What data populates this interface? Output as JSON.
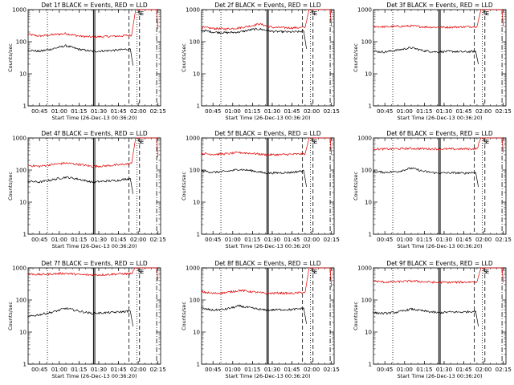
{
  "chart_data": {
    "type": "line",
    "grid": false,
    "xlabel": "Start Time (26-Dec-13 00:36:20)",
    "ylabel": "Counts/sec",
    "y_scale": "log",
    "ylim": [
      1,
      1000
    ],
    "yticks": [
      "1",
      "10",
      "100",
      "1000"
    ],
    "xlim": [
      "00:36:20",
      "02:17:00"
    ],
    "xticks": [
      {
        "time": "00:45",
        "label": "00:45"
      },
      {
        "time": "01:00",
        "label": "01:00"
      },
      {
        "time": "01:15",
        "label": "01:15"
      },
      {
        "time": "01:30",
        "label": "01:30"
      },
      {
        "time": "01:45",
        "label": "01:45"
      },
      {
        "time": "02:00",
        "label": "02:00"
      },
      {
        "time": "02:15",
        "label": "02:15"
      }
    ],
    "markers": [
      {
        "time": "00:51",
        "style": "dotted"
      },
      {
        "time": "01:26",
        "style": "solid"
      },
      {
        "time": "01:27",
        "style": "solid"
      },
      {
        "time": "01:53",
        "style": "dashed"
      },
      {
        "time": "01:59",
        "style": "dotted",
        "label": "S"
      },
      {
        "time": "02:01",
        "style": "dashed",
        "label": "E"
      },
      {
        "time": "02:14",
        "style": "dashdot"
      }
    ],
    "panels": [
      {
        "title": "Det 1f BLACK = Events, RED = LLD",
        "series": [
          {
            "color": "red",
            "points": [
              [
                "00:36",
                170
              ],
              [
                "00:45",
                150
              ],
              [
                "00:55",
                165
              ],
              [
                "01:05",
                180
              ],
              [
                "01:15",
                150
              ],
              [
                "01:25",
                140
              ],
              [
                "01:35",
                145
              ],
              [
                "01:45",
                150
              ],
              [
                "01:55",
                160
              ],
              [
                "01:58",
                1000
              ],
              [
                "02:14",
                1000
              ],
              [
                "02:15",
                250
              ]
            ]
          },
          {
            "color": "black",
            "points": [
              [
                "00:36",
                55
              ],
              [
                "00:45",
                50
              ],
              [
                "00:55",
                60
              ],
              [
                "01:05",
                75
              ],
              [
                "01:15",
                58
              ],
              [
                "01:25",
                50
              ],
              [
                "01:35",
                52
              ],
              [
                "01:45",
                55
              ],
              [
                "01:54",
                60
              ],
              [
                "01:56",
                18
              ]
            ]
          }
        ]
      },
      {
        "title": "Det 2f BLACK = Events, RED = LLD",
        "series": [
          {
            "color": "red",
            "points": [
              [
                "00:36",
                280
              ],
              [
                "00:45",
                260
              ],
              [
                "00:55",
                250
              ],
              [
                "01:05",
                270
              ],
              [
                "01:15",
                320
              ],
              [
                "01:20",
                360
              ],
              [
                "01:30",
                280
              ],
              [
                "01:45",
                270
              ],
              [
                "01:55",
                280
              ],
              [
                "01:58",
                1000
              ],
              [
                "02:14",
                1000
              ],
              [
                "02:15",
                300
              ]
            ]
          },
          {
            "color": "black",
            "points": [
              [
                "00:36",
                230
              ],
              [
                "00:45",
                200
              ],
              [
                "00:55",
                190
              ],
              [
                "01:05",
                200
              ],
              [
                "01:15",
                240
              ],
              [
                "01:20",
                250
              ],
              [
                "01:30",
                210
              ],
              [
                "01:45",
                200
              ],
              [
                "01:54",
                210
              ],
              [
                "01:56",
                60
              ]
            ]
          }
        ]
      },
      {
        "title": "Det 3f BLACK = Events, RED = LLD",
        "series": [
          {
            "color": "red",
            "points": [
              [
                "00:36",
                300
              ],
              [
                "00:45",
                290
              ],
              [
                "00:55",
                300
              ],
              [
                "01:05",
                310
              ],
              [
                "01:15",
                290
              ],
              [
                "01:25",
                280
              ],
              [
                "01:35",
                285
              ],
              [
                "01:45",
                290
              ],
              [
                "01:55",
                300
              ],
              [
                "01:58",
                1000
              ],
              [
                "02:14",
                1000
              ],
              [
                "02:15",
                300
              ]
            ]
          },
          {
            "color": "black",
            "points": [
              [
                "00:36",
                50
              ],
              [
                "00:45",
                48
              ],
              [
                "00:55",
                55
              ],
              [
                "01:05",
                65
              ],
              [
                "01:15",
                52
              ],
              [
                "01:25",
                48
              ],
              [
                "01:35",
                50
              ],
              [
                "01:45",
                48
              ],
              [
                "01:54",
                50
              ],
              [
                "01:56",
                20
              ]
            ]
          }
        ]
      },
      {
        "title": "Det 4f BLACK = Events, RED = LLD",
        "series": [
          {
            "color": "red",
            "points": [
              [
                "00:36",
                140
              ],
              [
                "00:45",
                130
              ],
              [
                "00:55",
                150
              ],
              [
                "01:05",
                165
              ],
              [
                "01:15",
                150
              ],
              [
                "01:25",
                130
              ],
              [
                "01:35",
                135
              ],
              [
                "01:45",
                145
              ],
              [
                "01:55",
                160
              ],
              [
                "01:58",
                1000
              ],
              [
                "02:14",
                1000
              ],
              [
                "02:15",
                250
              ]
            ]
          },
          {
            "color": "black",
            "points": [
              [
                "00:36",
                45
              ],
              [
                "00:45",
                42
              ],
              [
                "00:55",
                50
              ],
              [
                "01:05",
                60
              ],
              [
                "01:15",
                52
              ],
              [
                "01:25",
                42
              ],
              [
                "01:35",
                45
              ],
              [
                "01:45",
                48
              ],
              [
                "01:54",
                55
              ],
              [
                "01:56",
                18
              ]
            ]
          }
        ]
      },
      {
        "title": "Det 5f BLACK = Events, RED = LLD",
        "series": [
          {
            "color": "red",
            "points": [
              [
                "00:36",
                330
              ],
              [
                "00:45",
                310
              ],
              [
                "00:55",
                320
              ],
              [
                "01:05",
                350
              ],
              [
                "01:15",
                330
              ],
              [
                "01:25",
                300
              ],
              [
                "01:35",
                300
              ],
              [
                "01:45",
                310
              ],
              [
                "01:55",
                320
              ],
              [
                "01:58",
                1000
              ],
              [
                "02:14",
                1000
              ],
              [
                "02:15",
                300
              ]
            ]
          },
          {
            "color": "black",
            "points": [
              [
                "00:36",
                95
              ],
              [
                "00:45",
                85
              ],
              [
                "00:55",
                90
              ],
              [
                "01:05",
                105
              ],
              [
                "01:15",
                95
              ],
              [
                "01:25",
                80
              ],
              [
                "01:35",
                82
              ],
              [
                "01:45",
                85
              ],
              [
                "01:54",
                95
              ],
              [
                "01:56",
                30
              ]
            ]
          }
        ]
      },
      {
        "title": "Det 6f BLACK = Events, RED = LLD",
        "series": [
          {
            "color": "red",
            "points": [
              [
                "00:36",
                460
              ],
              [
                "00:45",
                450
              ],
              [
                "00:55",
                460
              ],
              [
                "01:05",
                470
              ],
              [
                "01:15",
                460
              ],
              [
                "01:25",
                455
              ],
              [
                "01:35",
                450
              ],
              [
                "01:45",
                455
              ],
              [
                "01:55",
                460
              ],
              [
                "01:58",
                1000
              ],
              [
                "02:14",
                1000
              ],
              [
                "02:15",
                350
              ]
            ]
          },
          {
            "color": "black",
            "points": [
              [
                "00:36",
                90
              ],
              [
                "00:45",
                85
              ],
              [
                "00:55",
                90
              ],
              [
                "01:05",
                115
              ],
              [
                "01:15",
                90
              ],
              [
                "01:25",
                80
              ],
              [
                "01:35",
                82
              ],
              [
                "01:45",
                80
              ],
              [
                "01:54",
                85
              ],
              [
                "01:56",
                30
              ]
            ]
          }
        ]
      },
      {
        "title": "Det 7f BLACK = Events, RED = LLD",
        "series": [
          {
            "color": "red",
            "points": [
              [
                "00:36",
                650
              ],
              [
                "00:45",
                620
              ],
              [
                "00:55",
                650
              ],
              [
                "01:05",
                680
              ],
              [
                "01:15",
                620
              ],
              [
                "01:25",
                600
              ],
              [
                "01:35",
                620
              ],
              [
                "01:45",
                650
              ],
              [
                "01:55",
                660
              ],
              [
                "01:58",
                1000
              ],
              [
                "02:14",
                1000
              ],
              [
                "02:15",
                400
              ]
            ]
          },
          {
            "color": "black",
            "points": [
              [
                "00:36",
                30
              ],
              [
                "00:45",
                35
              ],
              [
                "00:55",
                42
              ],
              [
                "01:05",
                55
              ],
              [
                "01:15",
                45
              ],
              [
                "01:25",
                38
              ],
              [
                "01:35",
                40
              ],
              [
                "01:45",
                42
              ],
              [
                "01:54",
                45
              ],
              [
                "01:56",
                15
              ]
            ]
          }
        ]
      },
      {
        "title": "Det 8f BLACK = Events, RED = LLD",
        "series": [
          {
            "color": "red",
            "points": [
              [
                "00:36",
                180
              ],
              [
                "00:45",
                160
              ],
              [
                "00:55",
                170
              ],
              [
                "01:05",
                200
              ],
              [
                "01:15",
                180
              ],
              [
                "01:25",
                160
              ],
              [
                "01:35",
                165
              ],
              [
                "01:45",
                160
              ],
              [
                "01:55",
                175
              ],
              [
                "01:58",
                1000
              ],
              [
                "02:14",
                1000
              ],
              [
                "02:15",
                250
              ]
            ]
          },
          {
            "color": "black",
            "points": [
              [
                "00:36",
                55
              ],
              [
                "00:45",
                48
              ],
              [
                "00:55",
                52
              ],
              [
                "01:05",
                65
              ],
              [
                "01:15",
                55
              ],
              [
                "01:25",
                48
              ],
              [
                "01:35",
                50
              ],
              [
                "01:45",
                50
              ],
              [
                "01:54",
                55
              ],
              [
                "01:56",
                18
              ]
            ]
          }
        ]
      },
      {
        "title": "Det 9f BLACK = Events, RED = LLD",
        "series": [
          {
            "color": "red",
            "points": [
              [
                "00:36",
                390
              ],
              [
                "00:45",
                360
              ],
              [
                "00:55",
                370
              ],
              [
                "01:05",
                390
              ],
              [
                "01:15",
                370
              ],
              [
                "01:25",
                350
              ],
              [
                "01:35",
                355
              ],
              [
                "01:45",
                360
              ],
              [
                "01:55",
                370
              ],
              [
                "01:58",
                1000
              ],
              [
                "02:14",
                1000
              ],
              [
                "02:15",
                350
              ]
            ]
          },
          {
            "color": "black",
            "points": [
              [
                "00:36",
                40
              ],
              [
                "00:45",
                38
              ],
              [
                "00:55",
                42
              ],
              [
                "01:05",
                52
              ],
              [
                "01:15",
                45
              ],
              [
                "01:25",
                40
              ],
              [
                "01:35",
                42
              ],
              [
                "01:45",
                42
              ],
              [
                "01:54",
                45
              ],
              [
                "01:56",
                15
              ]
            ]
          }
        ]
      }
    ]
  }
}
